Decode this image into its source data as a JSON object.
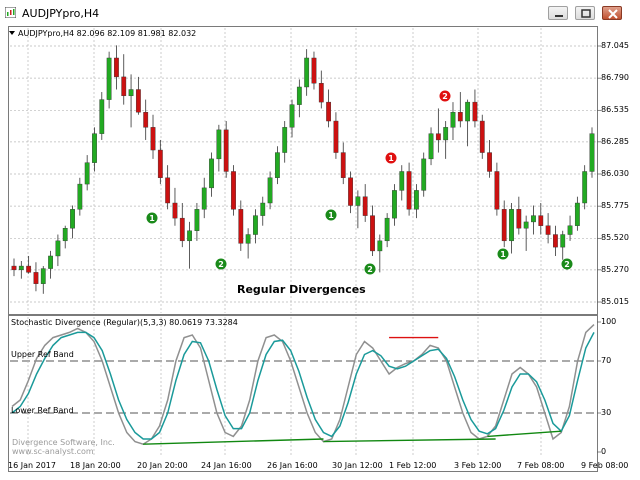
{
  "window": {
    "title": "AUDJPYpro,H4"
  },
  "symbol_info": "AUDJPYpro,H4  82.096 82.109 81.981 82.032",
  "caption": "Regular Divergences",
  "indicator": {
    "label": "Stochastic Divergence (Regular)(5,3,3) 80.0619 73.3284",
    "upper_ref_label": "Upper Ref Band",
    "lower_ref_label": "Lower Ref Band",
    "watermark_line1": "Divergence Software, Inc.",
    "watermark_line2": "www.sc-analyst.com"
  },
  "price_axis": [
    "87.045",
    "86.790",
    "86.535",
    "86.285",
    "86.030",
    "85.775",
    "85.520",
    "85.270",
    "85.015"
  ],
  "osc_axis": [
    "100",
    "70",
    "30",
    "0"
  ],
  "time_axis": [
    "16 Jan 2017",
    "18 Jan 20:00",
    "20 Jan 20:00",
    "24 Jan 16:00",
    "26 Jan 16:00",
    "30 Jan 12:00",
    "1 Feb 12:00",
    "3 Feb 12:00",
    "7 Feb 08:00",
    "9 Feb 08:00"
  ],
  "markers": [
    {
      "label": "1",
      "color": "#1a8a1a"
    },
    {
      "label": "2",
      "color": "#1a8a1a"
    },
    {
      "label": "1",
      "color": "#1a8a1a"
    },
    {
      "label": "2",
      "color": "#1a8a1a"
    },
    {
      "label": "1",
      "color": "#e01010"
    },
    {
      "label": "2",
      "color": "#e01010"
    },
    {
      "label": "1",
      "color": "#1a8a1a"
    },
    {
      "label": "2",
      "color": "#1a8a1a"
    }
  ],
  "colors": {
    "bull": "#22aa22",
    "bear": "#cc1111",
    "stoch_main": "#909090",
    "stoch_signal": "#1a9a9a",
    "div_bull": "#118811",
    "div_bear": "#dd1111"
  },
  "chart_data": {
    "type": "candlestick",
    "symbol": "AUDJPYpro,H4",
    "price_range": [
      85.015,
      87.045
    ],
    "osc_range": [
      0,
      100
    ],
    "ref_levels": [
      70,
      30
    ],
    "candles_ohlc": [
      [
        85.3,
        85.36,
        85.22,
        85.27
      ],
      [
        85.27,
        85.34,
        85.2,
        85.3
      ],
      [
        85.3,
        85.38,
        85.24,
        85.25
      ],
      [
        85.25,
        85.33,
        85.1,
        85.16
      ],
      [
        85.16,
        85.3,
        85.08,
        85.28
      ],
      [
        85.28,
        85.42,
        85.2,
        85.38
      ],
      [
        85.38,
        85.55,
        85.3,
        85.5
      ],
      [
        85.5,
        85.62,
        85.44,
        85.6
      ],
      [
        85.6,
        85.78,
        85.52,
        85.75
      ],
      [
        85.75,
        86.0,
        85.7,
        85.95
      ],
      [
        85.95,
        86.18,
        85.9,
        86.12
      ],
      [
        86.12,
        86.4,
        86.05,
        86.35
      ],
      [
        86.35,
        86.68,
        86.3,
        86.62
      ],
      [
        86.62,
        87.0,
        86.55,
        86.95
      ],
      [
        86.95,
        87.05,
        86.7,
        86.8
      ],
      [
        86.8,
        86.98,
        86.58,
        86.65
      ],
      [
        86.65,
        86.82,
        86.4,
        86.7
      ],
      [
        86.7,
        86.8,
        86.5,
        86.52
      ],
      [
        86.52,
        86.62,
        86.3,
        86.4
      ],
      [
        86.4,
        86.5,
        86.15,
        86.22
      ],
      [
        86.22,
        86.3,
        85.95,
        86.0
      ],
      [
        86.0,
        86.1,
        85.75,
        85.8
      ],
      [
        85.8,
        85.92,
        85.62,
        85.68
      ],
      [
        85.68,
        85.8,
        85.45,
        85.5
      ],
      [
        85.5,
        85.65,
        85.28,
        85.58
      ],
      [
        85.58,
        85.8,
        85.5,
        85.75
      ],
      [
        85.75,
        86.0,
        85.68,
        85.92
      ],
      [
        85.92,
        86.2,
        85.85,
        86.15
      ],
      [
        86.15,
        86.42,
        86.05,
        86.38
      ],
      [
        86.38,
        86.45,
        86.0,
        86.05
      ],
      [
        86.05,
        86.1,
        85.7,
        85.75
      ],
      [
        85.75,
        85.82,
        85.42,
        85.48
      ],
      [
        85.48,
        85.6,
        85.36,
        85.55
      ],
      [
        85.55,
        85.75,
        85.48,
        85.7
      ],
      [
        85.7,
        85.85,
        85.62,
        85.8
      ],
      [
        85.8,
        86.05,
        85.75,
        86.0
      ],
      [
        86.0,
        86.25,
        85.95,
        86.2
      ],
      [
        86.2,
        86.45,
        86.12,
        86.4
      ],
      [
        86.4,
        86.62,
        86.32,
        86.58
      ],
      [
        86.58,
        86.78,
        86.48,
        86.72
      ],
      [
        86.72,
        87.02,
        86.65,
        86.95
      ],
      [
        86.95,
        87.0,
        86.7,
        86.75
      ],
      [
        86.75,
        86.85,
        86.55,
        86.6
      ],
      [
        86.6,
        86.7,
        86.4,
        86.45
      ],
      [
        86.45,
        86.52,
        86.15,
        86.2
      ],
      [
        86.2,
        86.28,
        85.95,
        86.0
      ],
      [
        86.0,
        86.05,
        85.72,
        85.78
      ],
      [
        85.78,
        85.9,
        85.6,
        85.85
      ],
      [
        85.85,
        85.95,
        85.65,
        85.7
      ],
      [
        85.7,
        85.78,
        85.38,
        85.42
      ],
      [
        85.42,
        85.55,
        85.25,
        85.5
      ],
      [
        85.5,
        85.72,
        85.45,
        85.68
      ],
      [
        85.68,
        85.95,
        85.62,
        85.9
      ],
      [
        85.9,
        86.1,
        85.82,
        86.05
      ],
      [
        86.05,
        86.12,
        85.7,
        85.75
      ],
      [
        85.75,
        85.95,
        85.68,
        85.9
      ],
      [
        85.9,
        86.2,
        85.85,
        86.15
      ],
      [
        86.15,
        86.4,
        86.1,
        86.35
      ],
      [
        86.35,
        86.55,
        86.2,
        86.3
      ],
      [
        86.3,
        86.45,
        86.15,
        86.4
      ],
      [
        86.4,
        86.6,
        86.3,
        86.52
      ],
      [
        86.52,
        86.68,
        86.4,
        86.45
      ],
      [
        86.45,
        86.62,
        86.25,
        86.6
      ],
      [
        86.6,
        86.7,
        86.4,
        86.45
      ],
      [
        86.45,
        86.5,
        86.15,
        86.2
      ],
      [
        86.2,
        86.3,
        86.0,
        86.05
      ],
      [
        86.05,
        86.12,
        85.7,
        85.75
      ],
      [
        85.75,
        85.82,
        85.45,
        85.5
      ],
      [
        85.5,
        85.8,
        85.4,
        85.75
      ],
      [
        85.75,
        85.85,
        85.55,
        85.6
      ],
      [
        85.6,
        85.7,
        85.42,
        85.65
      ],
      [
        85.65,
        85.78,
        85.55,
        85.7
      ],
      [
        85.7,
        85.8,
        85.55,
        85.62
      ],
      [
        85.62,
        85.72,
        85.48,
        85.55
      ],
      [
        85.55,
        85.62,
        85.38,
        85.45
      ],
      [
        85.45,
        85.58,
        85.35,
        85.55
      ],
      [
        85.55,
        85.7,
        85.5,
        85.62
      ],
      [
        85.62,
        85.85,
        85.58,
        85.8
      ],
      [
        85.8,
        86.1,
        85.75,
        86.05
      ],
      [
        86.05,
        86.4,
        86.0,
        86.35
      ]
    ],
    "stoch_main": [
      35,
      40,
      55,
      72,
      82,
      88,
      90,
      92,
      95,
      92,
      85,
      70,
      50,
      30,
      15,
      8,
      6,
      10,
      20,
      40,
      70,
      88,
      90,
      80,
      55,
      30,
      15,
      12,
      20,
      40,
      70,
      88,
      90,
      85,
      70,
      50,
      30,
      15,
      8,
      10,
      25,
      50,
      75,
      85,
      80,
      70,
      60,
      65,
      68,
      70,
      75,
      82,
      80,
      70,
      50,
      30,
      15,
      10,
      12,
      20,
      40,
      60,
      65,
      60,
      50,
      30,
      10,
      15,
      35,
      70,
      92,
      98
    ],
    "stoch_signal": [
      30,
      35,
      45,
      60,
      72,
      82,
      88,
      90,
      92,
      92,
      88,
      78,
      60,
      40,
      25,
      15,
      10,
      10,
      15,
      30,
      55,
      75,
      85,
      84,
      70,
      48,
      28,
      18,
      18,
      30,
      55,
      75,
      85,
      86,
      78,
      62,
      42,
      25,
      15,
      12,
      20,
      38,
      60,
      75,
      78,
      74,
      66,
      64,
      66,
      70,
      74,
      78,
      79,
      72,
      58,
      40,
      25,
      16,
      14,
      18,
      32,
      50,
      60,
      60,
      54,
      40,
      22,
      16,
      28,
      55,
      80,
      92
    ]
  }
}
